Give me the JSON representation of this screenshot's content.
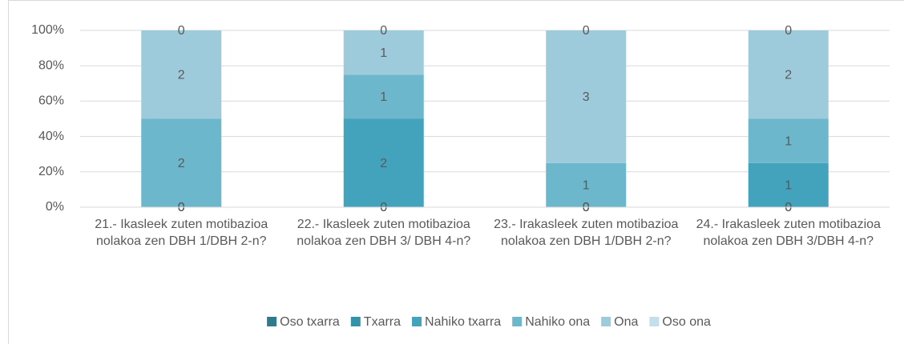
{
  "chart_data": {
    "type": "bar",
    "stacking": "percent",
    "categories": [
      "21.- Ikasleek zuten motibazioa nolakoa zen DBH 1/DBH 2-n?",
      "22.- Ikasleek zuten motibazioa nolakoa zen DBH 3/ DBH 4-n?",
      "23.- Irakasleek zuten motibazioa nolakoa zen DBH 1/DBH 2-n?",
      "24.- Irakasleek zuten motibazioa nolakoa zen DBH 3/DBH 4-n?"
    ],
    "series": [
      {
        "name": "Oso txarra",
        "color": "#2f7a8c",
        "values": [
          0,
          0,
          0,
          0
        ]
      },
      {
        "name": "Txarra",
        "color": "#3592a8",
        "values": [
          0,
          0,
          0,
          0
        ]
      },
      {
        "name": "Nahiko txarra",
        "color": "#43a3bd",
        "values": [
          0,
          2,
          0,
          1
        ]
      },
      {
        "name": "Nahiko ona",
        "color": "#6db7cd",
        "values": [
          2,
          1,
          1,
          1
        ]
      },
      {
        "name": "Ona",
        "color": "#9ecbdb",
        "values": [
          2,
          1,
          3,
          2
        ]
      },
      {
        "name": "Oso ona",
        "color": "#c3e0ea",
        "values": [
          0,
          0,
          0,
          0
        ]
      }
    ],
    "ylim": [
      0,
      100
    ],
    "yticks": [
      {
        "value": 0,
        "label": "0%"
      },
      {
        "value": 20,
        "label": "20%"
      },
      {
        "value": 40,
        "label": "40%"
      },
      {
        "value": 60,
        "label": "60%"
      },
      {
        "value": 80,
        "label": "80%"
      },
      {
        "value": 100,
        "label": "100%"
      }
    ],
    "grid": true,
    "legend": "bottom"
  }
}
